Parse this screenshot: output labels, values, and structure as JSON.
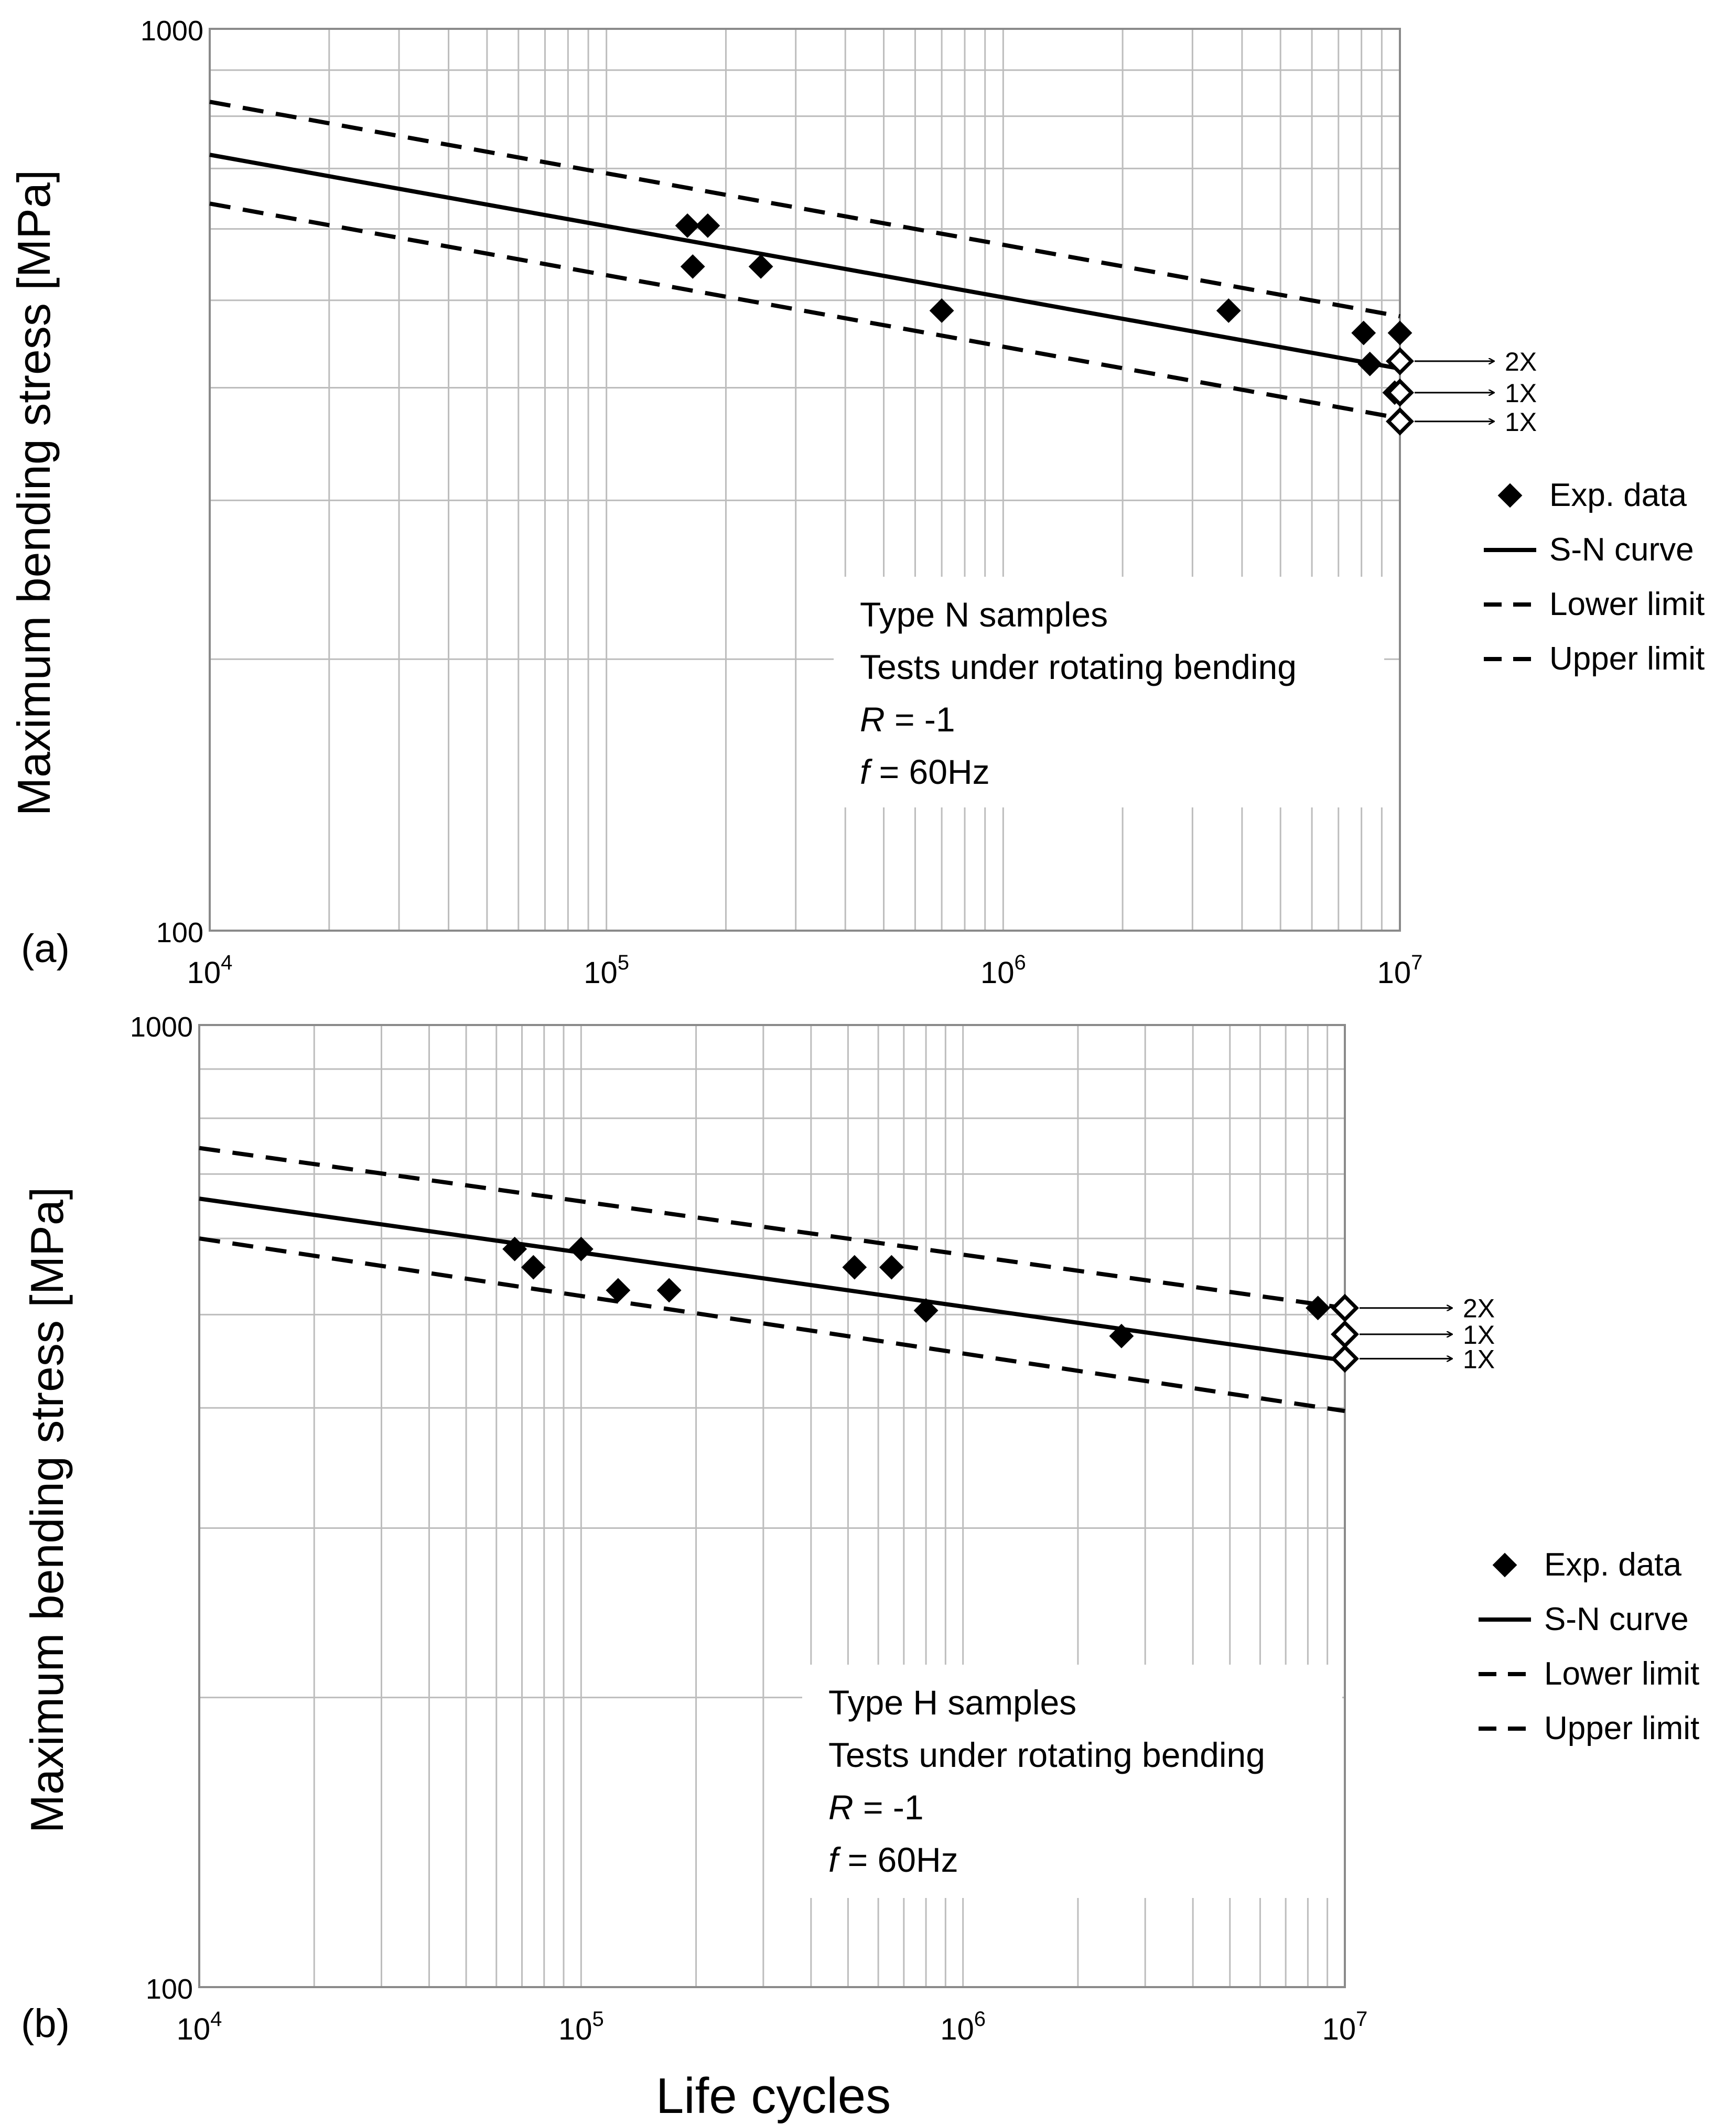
{
  "figure": {
    "x_axis_title": "Life cycles"
  },
  "chart_data": [
    {
      "type": "scatter",
      "panel_label": "(a)",
      "title": "",
      "xlabel": "",
      "ylabel": "Maximum bending stress [MPa]",
      "x_scale": "log",
      "y_scale": "log",
      "xlim": [
        10000,
        10000000
      ],
      "ylim": [
        100,
        1000
      ],
      "x_tick_labels": [
        {
          "base": "10",
          "exp": "4",
          "value": 10000
        },
        {
          "base": "10",
          "exp": "5",
          "value": 100000
        },
        {
          "base": "10",
          "exp": "6",
          "value": 1000000
        },
        {
          "base": "10",
          "exp": "7",
          "value": 10000000
        }
      ],
      "y_tick_labels": [
        {
          "text": "100",
          "value": 100
        },
        {
          "text": "1000",
          "value": 1000
        }
      ],
      "grid": true,
      "legend_position": "right",
      "legend": [
        "Exp. data",
        "S-N curve",
        "Lower limit",
        "Upper limit"
      ],
      "annotation_box": {
        "position": "lower-right",
        "line1": "Type N samples",
        "line2": "Tests under rotating bending",
        "line3_var": "R",
        "line3_rest": " = -1",
        "line4_var": "f",
        "line4_rest": " = 60Hz"
      },
      "series": [
        {
          "name": "Exp. data",
          "kind": "points",
          "marker": "filled-diamond",
          "points": [
            {
              "x": 160000,
              "y": 605
            },
            {
              "x": 180000,
              "y": 605
            },
            {
              "x": 165000,
              "y": 545
            },
            {
              "x": 245000,
              "y": 545
            },
            {
              "x": 700000,
              "y": 487
            },
            {
              "x": 3700000,
              "y": 487
            },
            {
              "x": 8100000,
              "y": 460
            },
            {
              "x": 10000000,
              "y": 460
            },
            {
              "x": 8400000,
              "y": 425
            },
            {
              "x": 9700000,
              "y": 395
            },
            {
              "x": 10000000,
              "y": 395
            }
          ]
        },
        {
          "name": "Run-outs",
          "kind": "points",
          "marker": "open-diamond",
          "points": [
            {
              "x": 10000000,
              "y": 428
            },
            {
              "x": 10000000,
              "y": 395
            },
            {
              "x": 10000000,
              "y": 367
            }
          ]
        },
        {
          "name": "S-N curve",
          "kind": "line",
          "style": "solid",
          "points": [
            {
              "x": 10000,
              "y": 725
            },
            {
              "x": 10000000,
              "y": 420
            }
          ]
        },
        {
          "name": "Lower limit",
          "kind": "line",
          "style": "dashed",
          "points": [
            {
              "x": 10000,
              "y": 640
            },
            {
              "x": 10000000,
              "y": 370
            }
          ]
        },
        {
          "name": "Upper limit",
          "kind": "line",
          "style": "dashed",
          "points": [
            {
              "x": 10000,
              "y": 830
            },
            {
              "x": 10000000,
              "y": 480
            }
          ]
        }
      ],
      "runout_labels": [
        {
          "text": "2X",
          "y": 428
        },
        {
          "text": "1X",
          "y": 395
        },
        {
          "text": "1X",
          "y": 367
        }
      ]
    },
    {
      "type": "scatter",
      "panel_label": "(b)",
      "title": "",
      "xlabel": "Life cycles",
      "ylabel": "Maximum bending stress [MPa]",
      "x_scale": "log",
      "y_scale": "log",
      "xlim": [
        10000,
        10000000
      ],
      "ylim": [
        100,
        1000
      ],
      "x_tick_labels": [
        {
          "base": "10",
          "exp": "4",
          "value": 10000
        },
        {
          "base": "10",
          "exp": "5",
          "value": 100000
        },
        {
          "base": "10",
          "exp": "6",
          "value": 1000000
        },
        {
          "base": "10",
          "exp": "7",
          "value": 10000000
        }
      ],
      "y_tick_labels": [
        {
          "text": "100",
          "value": 100
        },
        {
          "text": "1000",
          "value": 1000
        }
      ],
      "grid": true,
      "legend_position": "right",
      "legend": [
        "Exp. data",
        "S-N curve",
        "Lower limit",
        "Upper limit"
      ],
      "annotation_box": {
        "position": "lower-right",
        "line1": "Type H samples",
        "line2": "Tests under rotating bending",
        "line3_var": "R",
        "line3_rest": " = -1",
        "line4_var": "f",
        "line4_rest": " = 60Hz"
      },
      "series": [
        {
          "name": "Exp. data",
          "kind": "points",
          "marker": "filled-diamond",
          "points": [
            {
              "x": 67000,
              "y": 585
            },
            {
              "x": 100000,
              "y": 585
            },
            {
              "x": 75000,
              "y": 560
            },
            {
              "x": 520000,
              "y": 560
            },
            {
              "x": 650000,
              "y": 560
            },
            {
              "x": 125000,
              "y": 530
            },
            {
              "x": 170000,
              "y": 530
            },
            {
              "x": 800000,
              "y": 505
            },
            {
              "x": 2600000,
              "y": 475
            },
            {
              "x": 8500000,
              "y": 508
            }
          ]
        },
        {
          "name": "Run-outs",
          "kind": "points",
          "marker": "open-diamond",
          "points": [
            {
              "x": 10000000,
              "y": 508
            },
            {
              "x": 10000000,
              "y": 477
            },
            {
              "x": 10000000,
              "y": 450
            }
          ]
        },
        {
          "name": "S-N curve",
          "kind": "line",
          "style": "solid",
          "points": [
            {
              "x": 10000,
              "y": 660
            },
            {
              "x": 10000000,
              "y": 448
            }
          ]
        },
        {
          "name": "Lower limit",
          "kind": "line",
          "style": "dashed",
          "points": [
            {
              "x": 10000,
              "y": 600
            },
            {
              "x": 10000000,
              "y": 397
            }
          ]
        },
        {
          "name": "Upper limit",
          "kind": "line",
          "style": "dashed",
          "points": [
            {
              "x": 10000,
              "y": 745
            },
            {
              "x": 10000000,
              "y": 508
            }
          ]
        }
      ],
      "runout_labels": [
        {
          "text": "2X",
          "y": 508
        },
        {
          "text": "1X",
          "y": 477
        },
        {
          "text": "1X",
          "y": 450
        }
      ]
    }
  ]
}
